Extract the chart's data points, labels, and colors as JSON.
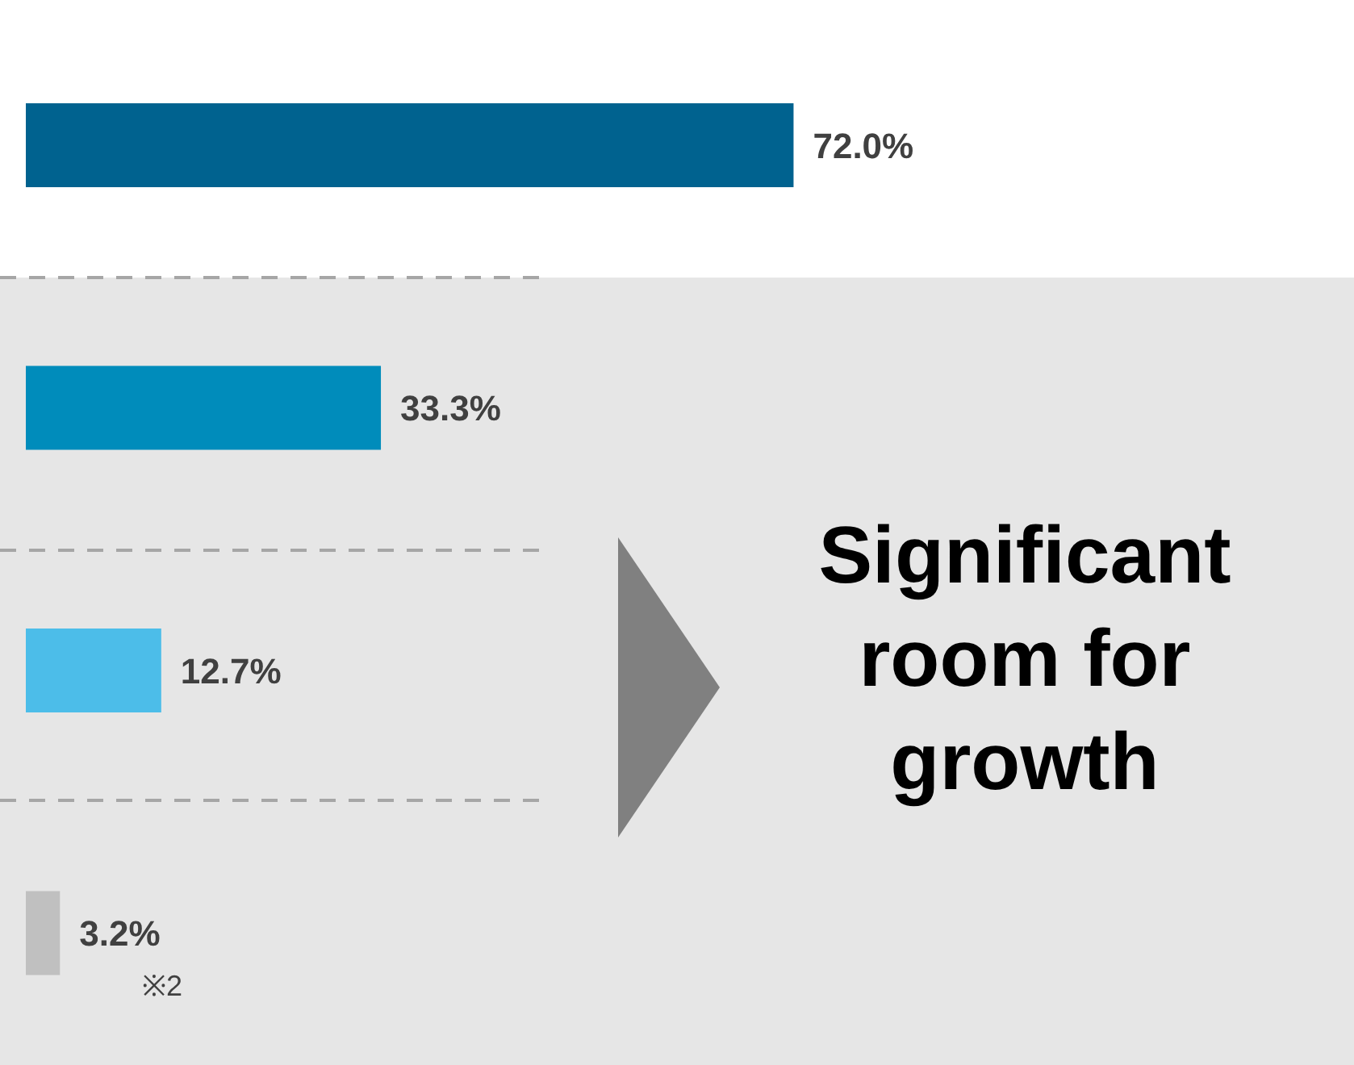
{
  "chart_data": {
    "type": "bar",
    "orientation": "horizontal",
    "categories": [
      null,
      null,
      null,
      null
    ],
    "values": [
      72.0,
      33.3,
      12.7,
      3.2
    ],
    "colors": [
      "#00628f",
      "#008cbb",
      "#4cbde9",
      "#c0c0c0"
    ],
    "value_labels": [
      "72.0%",
      "33.3%",
      "12.7%",
      "3.2%"
    ],
    "annotations": [
      "Significant room for growth",
      "※2"
    ],
    "grid": false,
    "legend": false
  }
}
